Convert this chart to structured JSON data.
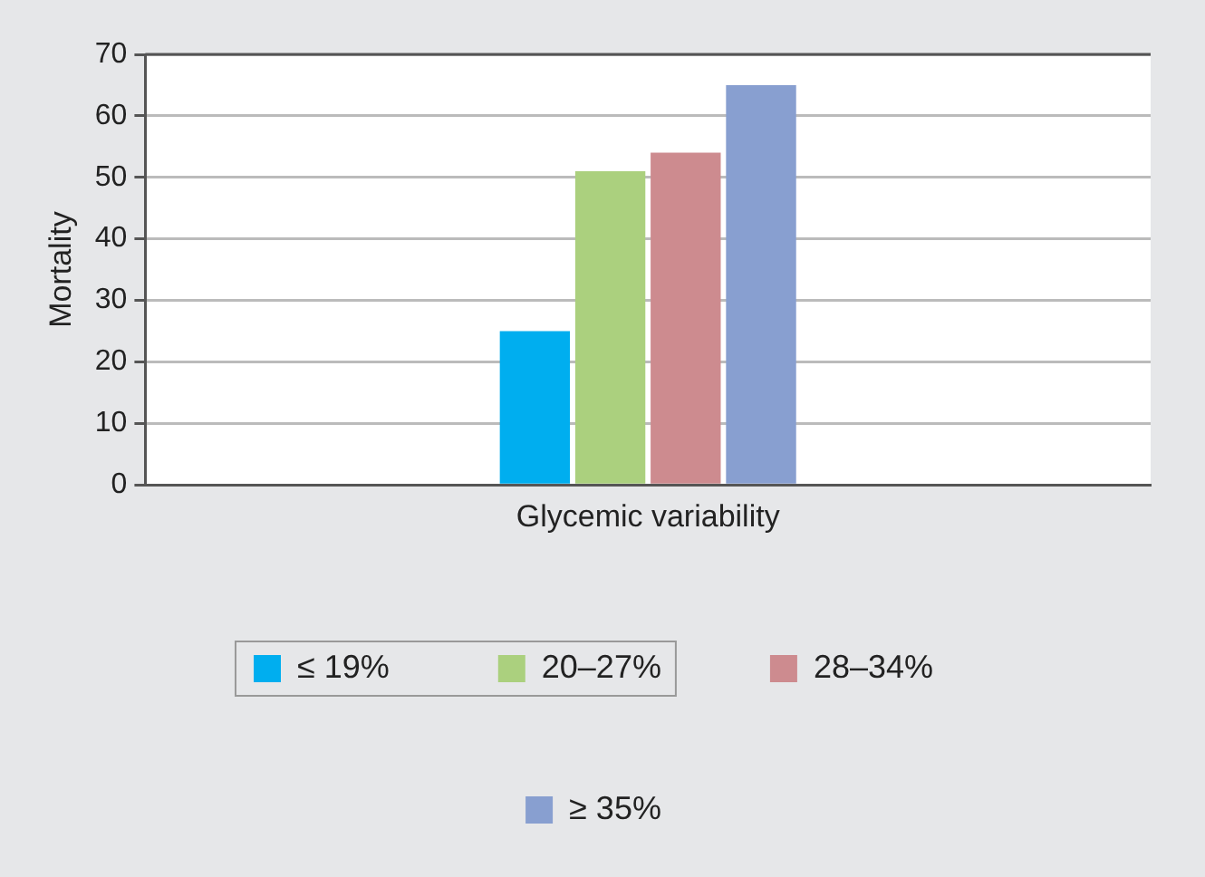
{
  "chart_data": {
    "type": "bar",
    "xlabel": "Glycemic variability",
    "ylabel": "Mortality",
    "categories": [
      null
    ],
    "series": [
      {
        "name": "≤ 19%",
        "color": "#00aeef",
        "values": [
          25
        ]
      },
      {
        "name": "20–27%",
        "color": "#abd07e",
        "values": [
          51
        ]
      },
      {
        "name": "28–34%",
        "color": "#cd8b8f",
        "values": [
          54
        ]
      },
      {
        "name": "≥ 35%",
        "color": "#889fd0",
        "values": [
          65
        ]
      }
    ],
    "ylim": [
      0,
      70
    ],
    "yticks": [
      0,
      10,
      20,
      30,
      40,
      50,
      60,
      70
    ],
    "grid": "y",
    "legend": "bottom"
  }
}
